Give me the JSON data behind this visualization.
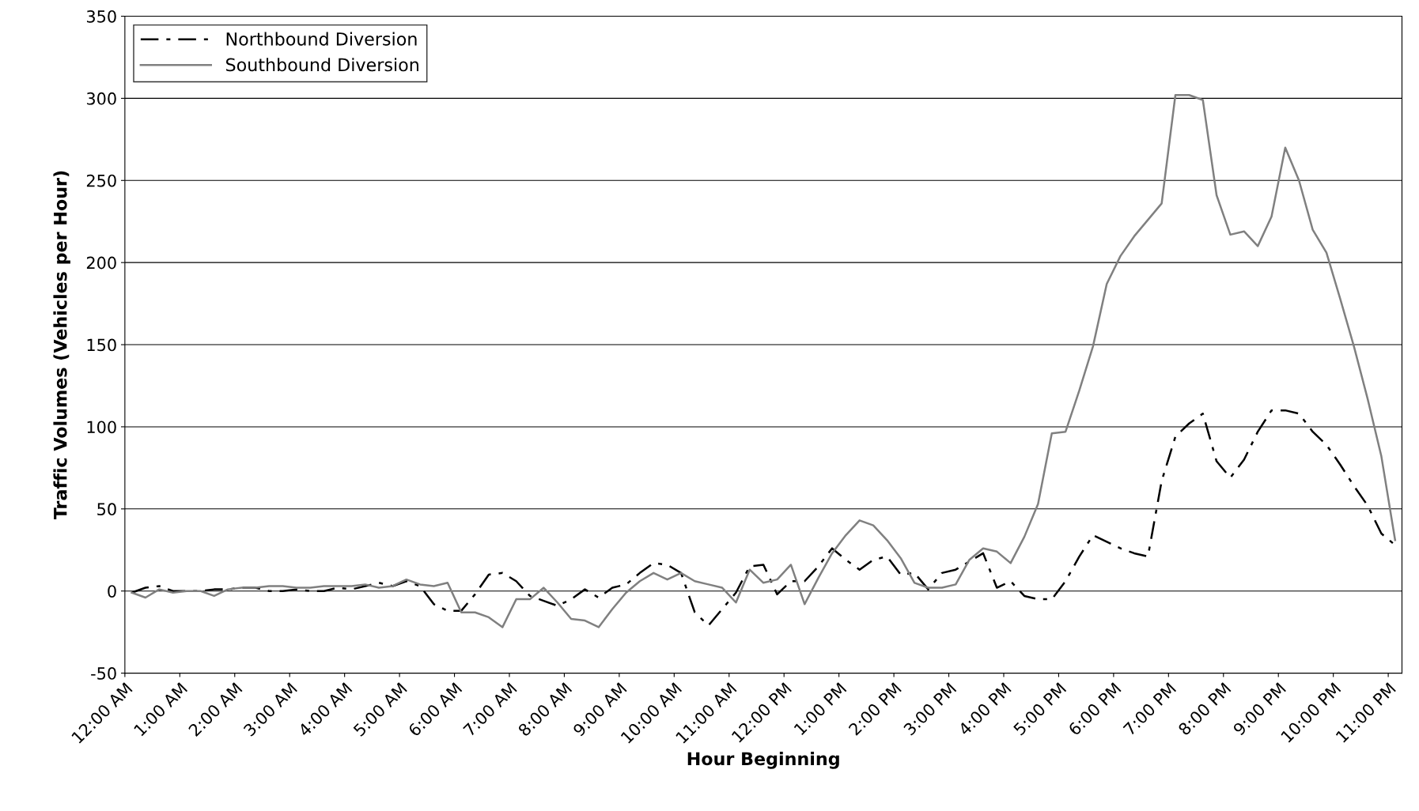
{
  "chart_data": {
    "type": "line",
    "xlabel": "Hour Beginning",
    "ylabel": "Traffic Volumes (Vehicles per Hour)",
    "x": [
      0.125,
      0.375,
      0.625,
      0.875,
      1.125,
      1.375,
      1.625,
      1.875,
      2.125,
      2.375,
      2.625,
      2.875,
      3.125,
      3.375,
      3.625,
      3.875,
      4.125,
      4.375,
      4.625,
      4.875,
      5.125,
      5.375,
      5.625,
      5.875,
      6.125,
      6.375,
      6.625,
      6.875,
      7.125,
      7.375,
      7.625,
      7.875,
      8.125,
      8.375,
      8.625,
      8.875,
      9.125,
      9.375,
      9.625,
      9.875,
      10.125,
      10.375,
      10.625,
      10.875,
      11.125,
      11.375,
      11.625,
      11.875,
      12.125,
      12.375,
      12.625,
      12.875,
      13.125,
      13.375,
      13.625,
      13.875,
      14.125,
      14.375,
      14.625,
      14.875,
      15.125,
      15.375,
      15.625,
      15.875,
      16.125,
      16.375,
      16.625,
      16.875,
      17.125,
      17.375,
      17.625,
      17.875,
      18.125,
      18.375,
      18.625,
      18.875,
      19.125,
      19.375,
      19.625,
      19.875,
      20.125,
      20.375,
      20.625,
      20.875,
      21.125,
      21.375,
      21.625,
      21.875,
      22.125,
      22.375,
      22.625,
      22.875,
      23.125
    ],
    "series": [
      {
        "name": "Northbound Diversion",
        "color": "#000000",
        "line_style": "dashed",
        "values": [
          -1,
          2,
          3,
          0,
          0,
          0,
          1,
          1,
          2,
          2,
          0,
          0,
          1,
          0,
          0,
          2,
          1,
          3,
          5,
          3,
          6,
          3,
          -8,
          -12,
          -12,
          -2,
          10,
          11,
          6,
          -3,
          -6,
          -9,
          -5,
          1,
          -4,
          2,
          4,
          11,
          17,
          16,
          11,
          -13,
          -21,
          -11,
          -1,
          15,
          16,
          -2,
          6,
          6,
          15,
          26,
          19,
          13,
          19,
          21,
          10,
          11,
          1,
          11,
          13,
          18,
          23,
          2,
          6,
          -3,
          -5,
          -5,
          6,
          21,
          34,
          30,
          26,
          23,
          21,
          67,
          94,
          102,
          108,
          79,
          69,
          80,
          97,
          110,
          110,
          108,
          97,
          89,
          77,
          64,
          52,
          35,
          28
        ]
      },
      {
        "name": "Southbound Diversion",
        "color": "#808080",
        "line_style": "solid",
        "values": [
          -1,
          -4,
          1,
          -1,
          0,
          0,
          -3,
          1,
          2,
          2,
          3,
          3,
          2,
          2,
          3,
          3,
          3,
          4,
          2,
          3,
          7,
          4,
          3,
          5,
          -13,
          -13,
          -16,
          -22,
          -5,
          -5,
          2,
          -7,
          -17,
          -18,
          -22,
          -11,
          -1,
          6,
          11,
          7,
          11,
          6,
          4,
          2,
          -7,
          13,
          5,
          7,
          16,
          -8,
          8,
          23,
          34,
          43,
          40,
          31,
          20,
          5,
          2,
          2,
          4,
          19,
          26,
          24,
          17,
          33,
          53,
          96,
          97,
          122,
          149,
          187,
          204,
          216,
          226,
          236,
          302,
          302,
          299,
          241,
          217,
          219,
          210,
          228,
          270,
          250,
          220,
          206,
          178,
          149,
          117,
          82,
          31
        ]
      }
    ],
    "xlim": [
      0,
      23.25
    ],
    "xticks": [
      {
        "value": 0,
        "label": "12:00 AM"
      },
      {
        "value": 1,
        "label": "1:00 AM"
      },
      {
        "value": 2,
        "label": "2:00 AM"
      },
      {
        "value": 3,
        "label": "3:00 AM"
      },
      {
        "value": 4,
        "label": "4:00 AM"
      },
      {
        "value": 5,
        "label": "5:00 AM"
      },
      {
        "value": 6,
        "label": "6:00 AM"
      },
      {
        "value": 7,
        "label": "7:00 AM"
      },
      {
        "value": 8,
        "label": "8:00 AM"
      },
      {
        "value": 9,
        "label": "9:00 AM"
      },
      {
        "value": 10,
        "label": "10:00 AM"
      },
      {
        "value": 11,
        "label": "11:00 AM"
      },
      {
        "value": 12,
        "label": "12:00 PM"
      },
      {
        "value": 13,
        "label": "1:00 PM"
      },
      {
        "value": 14,
        "label": "2:00 PM"
      },
      {
        "value": 15,
        "label": "3:00 PM"
      },
      {
        "value": 16,
        "label": "4:00 PM"
      },
      {
        "value": 17,
        "label": "5:00 PM"
      },
      {
        "value": 18,
        "label": "6:00 PM"
      },
      {
        "value": 19,
        "label": "7:00 PM"
      },
      {
        "value": 20,
        "label": "8:00 PM"
      },
      {
        "value": 21,
        "label": "9:00 PM"
      },
      {
        "value": 22,
        "label": "10:00 PM"
      },
      {
        "value": 23,
        "label": "11:00 PM"
      }
    ],
    "ylim": [
      -50,
      350
    ],
    "yticks": [
      -50,
      0,
      50,
      100,
      150,
      200,
      250,
      300,
      350
    ],
    "grid": "y",
    "legend": "top left",
    "marker": "none"
  }
}
